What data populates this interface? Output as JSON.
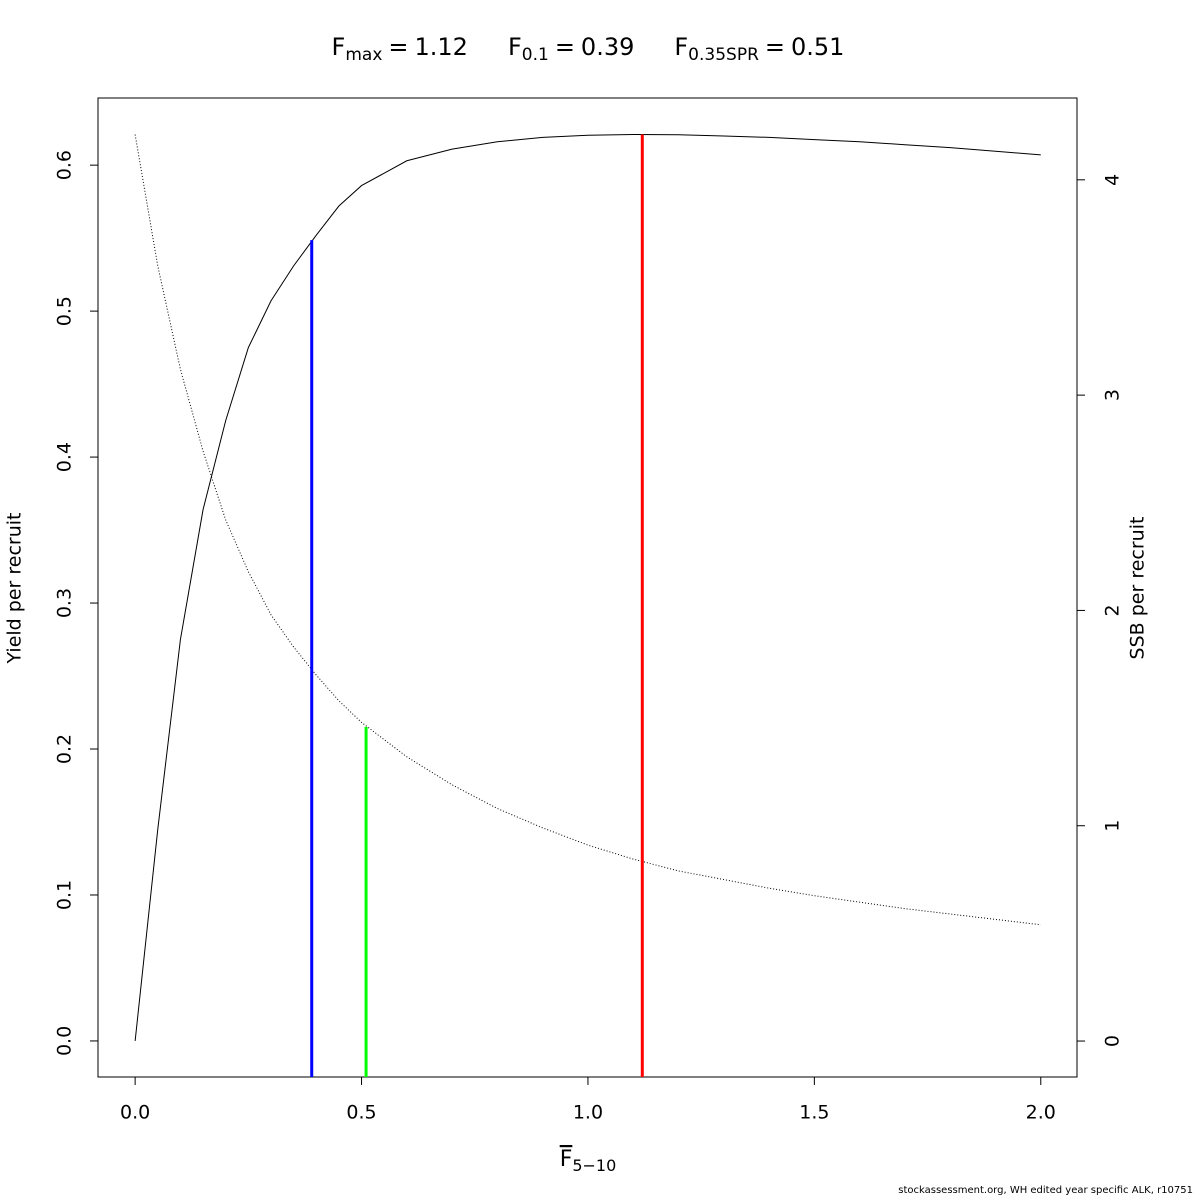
{
  "chart_data": {
    "type": "line",
    "title_items": [
      {
        "symbol": "F",
        "subscript": "max",
        "relation": "=",
        "value": 1.12,
        "color": "#ff0000",
        "top": 0.621,
        "top_axis": "y"
      },
      {
        "symbol": "F",
        "subscript": "0.1",
        "relation": "=",
        "value": 0.39,
        "color": "#0000ff",
        "top": 0.5486,
        "top_axis": "y"
      },
      {
        "symbol": "F",
        "subscript": "0.35SPR",
        "relation": "=",
        "value": 0.51,
        "color": "#00ff00",
        "top": 1.459,
        "top_axis": "y2"
      }
    ],
    "xlabel": {
      "symbol": "F",
      "subscript": "5−10"
    },
    "ylabel": "Yield per recruit",
    "y2label": "SSB per recruit",
    "x": [
      0,
      0.05,
      0.1,
      0.15,
      0.2,
      0.25,
      0.3,
      0.35,
      0.4,
      0.45,
      0.5,
      0.6,
      0.7,
      0.8,
      0.9,
      1.0,
      1.1,
      1.2,
      1.3,
      1.4,
      1.5,
      1.6,
      1.7,
      1.8,
      1.9,
      2.0
    ],
    "series": [
      {
        "color": "#000000",
        "line_style": "solid",
        "values": [
          0,
          0.145,
          0.275,
          0.364,
          0.425,
          0.475,
          0.507,
          0.531,
          0.552,
          0.572,
          0.586,
          0.603,
          0.611,
          0.616,
          0.619,
          0.6205,
          0.621,
          0.6208,
          0.62,
          0.619,
          0.6175,
          0.616,
          0.614,
          0.612,
          0.6095,
          0.607
        ]
      },
      {
        "color": "#000000",
        "line_style": "dotted",
        "axis": "y2",
        "values": [
          4.21,
          3.6,
          3.12,
          2.74,
          2.42,
          2.18,
          1.98,
          1.83,
          1.7,
          1.58,
          1.48,
          1.32,
          1.19,
          1.08,
          0.99,
          0.91,
          0.845,
          0.79,
          0.75,
          0.71,
          0.675,
          0.645,
          0.615,
          0.59,
          0.565,
          0.54
        ]
      }
    ],
    "xlim": [
      -0.082,
      2.08
    ],
    "xticks": [
      {
        "value": 0,
        "label": "0.0"
      },
      0.5,
      {
        "value": 1,
        "label": "1.0"
      },
      1.5,
      {
        "value": 2,
        "label": "2.0"
      }
    ],
    "ylim": [
      -0.0247,
      0.646
    ],
    "yticks": [
      {
        "value": 0,
        "label": "0.0"
      },
      0.1,
      0.2,
      0.3,
      0.4,
      0.5,
      0.6
    ],
    "y2lim": [
      -0.167,
      4.38
    ],
    "y2ticks": [
      0,
      1,
      2,
      3,
      4
    ],
    "footnote": "stockassessment.org, WH  edited  year  specific  ALK, r10751"
  }
}
